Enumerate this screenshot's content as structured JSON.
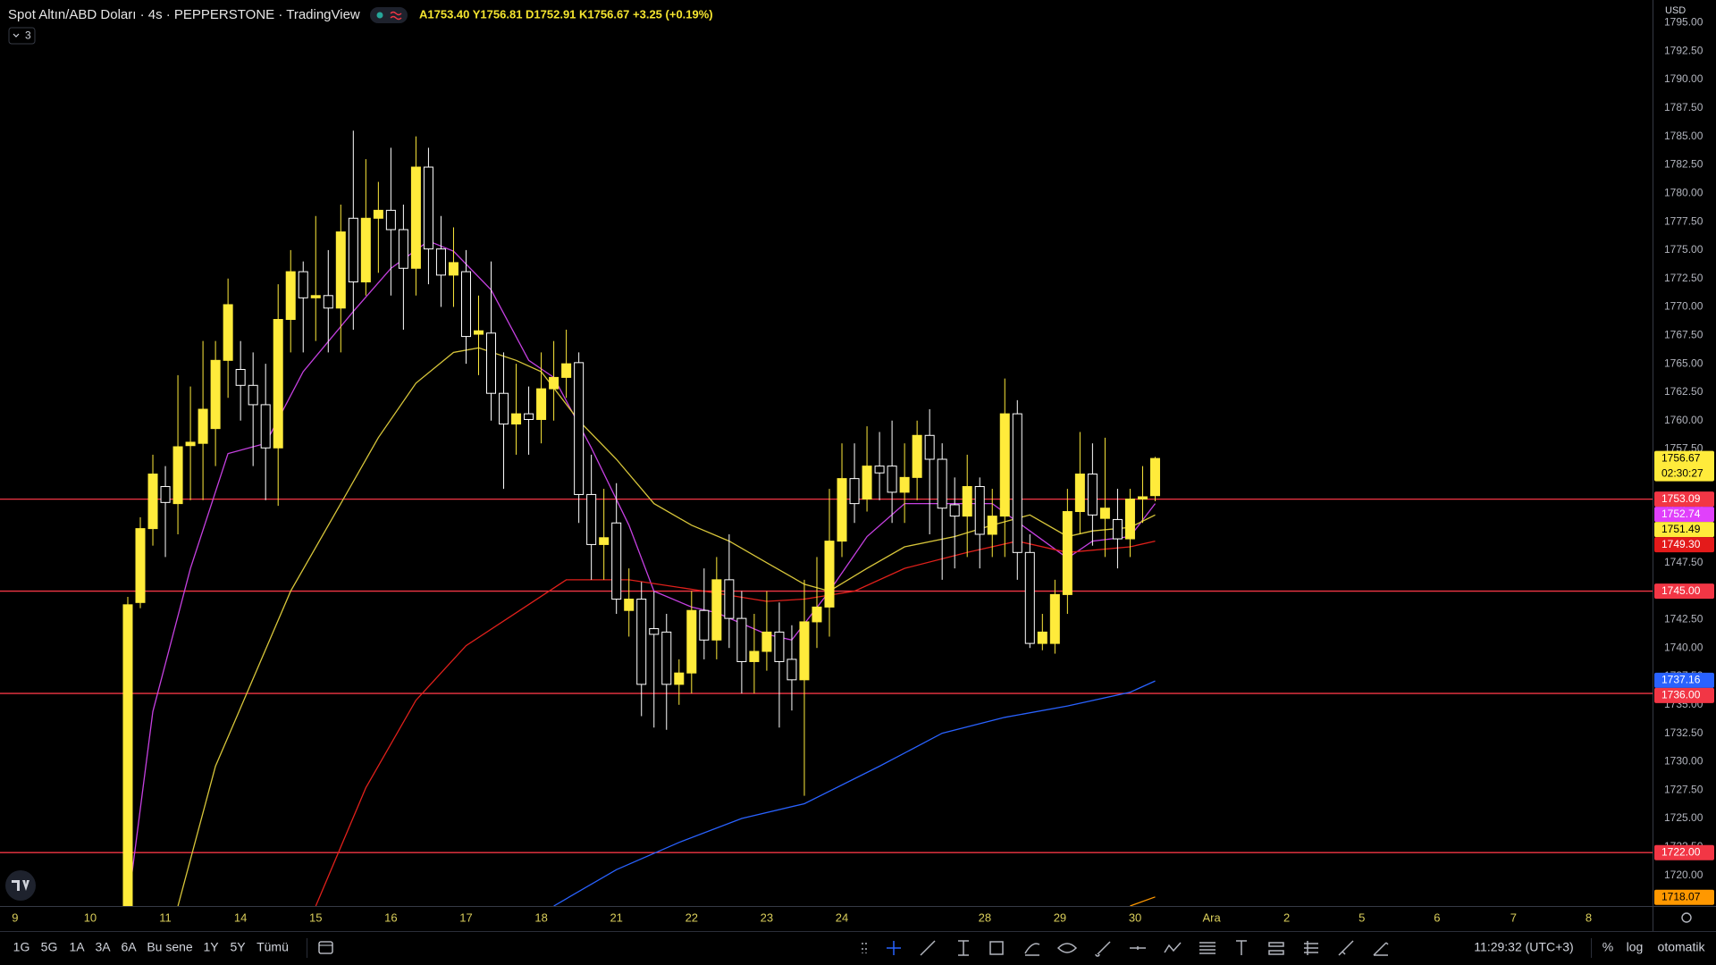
{
  "ui": {
    "symbol": "Spot Altın/ABD Doları · 4s · PEPPERSTONE · TradingView",
    "ohlc": "A1753.40 Y1756.81 D1752.91 K1756.67 +3.25 (+0.19%)",
    "indicators_count": "3",
    "currency": "USD",
    "ranges": [
      "1G",
      "5G",
      "1A",
      "3A",
      "6A",
      "Bu sene",
      "1Y",
      "5Y",
      "Tümü"
    ],
    "clock": "11:29:32 (UTC+3)",
    "percent": "%",
    "log": "log",
    "auto": "otomatik"
  },
  "chart_data": {
    "type": "candlestick",
    "up_color": "#ffeb3b",
    "down_color": "#ffffff",
    "open": [
      1717,
      1744,
      1750.5,
      1754.2,
      1752.7,
      1757.8,
      1758,
      1759.3,
      1765.3,
      1764.5,
      1763.1,
      1761.4,
      1757.6,
      1768.9,
      1773.1,
      1770.8,
      1771,
      1769.9,
      1777.8,
      1772.2,
      1777.8,
      1778.5,
      1776.8,
      1773.4,
      1782.3,
      1775.1,
      1772.8,
      1773.1,
      1767.6,
      1767.7,
      1762.4,
      1759.7,
      1760.6,
      1760.1,
      1762.8,
      1763.8,
      1765.1,
      1753.5,
      1749.1,
      1751,
      1743.3,
      1744.3,
      1741.7,
      1741.4,
      1736.8,
      1737.8,
      1743.3,
      1740.7,
      1746,
      1742.6,
      1738.8,
      1739.7,
      1741.4,
      1739,
      1737.2,
      1742.3,
      1743.6,
      1749.4,
      1754.9,
      1753.1,
      1756,
      1756,
      1753.7,
      1755,
      1758.7,
      1756.6,
      1752.6,
      1751.6,
      1754.2,
      1750,
      1751.6,
      1760.6,
      1748.4,
      1740.4,
      1740.4,
      1744.7,
      1752,
      1755.3,
      1751.4,
      1751.3,
      1749.6,
      1753.1,
      1753.4
    ],
    "high": [
      1744.5,
      1751.5,
      1757,
      1756,
      1764,
      1763,
      1767,
      1767,
      1772.5,
      1767,
      1766,
      1765,
      1772,
      1775,
      1774,
      1778,
      1775,
      1779,
      1785.5,
      1783,
      1781,
      1784,
      1779,
      1785,
      1784,
      1778,
      1777,
      1775,
      1771,
      1774,
      1766,
      1765,
      1763,
      1766,
      1767,
      1768,
      1766,
      1757,
      1754,
      1754.5,
      1747,
      1745.8,
      1745,
      1743,
      1739,
      1745,
      1747,
      1748,
      1750,
      1745,
      1743,
      1745,
      1744,
      1742,
      1746,
      1748,
      1754,
      1758,
      1758,
      1759.5,
      1759,
      1760,
      1758,
      1760,
      1761,
      1758,
      1755,
      1757,
      1755,
      1754,
      1763.7,
      1761.8,
      1750,
      1743,
      1746,
      1754,
      1759,
      1758,
      1758.5,
      1754,
      1754,
      1756,
      1756.81
    ],
    "low": [
      1716,
      1743.5,
      1749,
      1748,
      1750,
      1753,
      1753,
      1756,
      1762,
      1760,
      1756,
      1753,
      1752.5,
      1766,
      1766,
      1767,
      1766,
      1766,
      1768,
      1771,
      1773,
      1771,
      1768,
      1771,
      1772,
      1770,
      1770,
      1765,
      1764,
      1760,
      1754,
      1757,
      1757,
      1758,
      1760,
      1762,
      1751,
      1746,
      1746,
      1743,
      1741,
      1734,
      1733,
      1732.8,
      1735,
      1736,
      1739,
      1739,
      1740,
      1736,
      1736,
      1738,
      1733,
      1734.5,
      1727,
      1740,
      1741,
      1748,
      1751,
      1752,
      1753,
      1751,
      1751,
      1753,
      1750,
      1746,
      1747,
      1748,
      1747,
      1748,
      1748,
      1746,
      1740,
      1739.8,
      1739.5,
      1743,
      1750,
      1749,
      1748,
      1747,
      1748,
      1751,
      1752.91
    ],
    "close": [
      1743.8,
      1750.5,
      1755.3,
      1752.8,
      1757.7,
      1758.1,
      1761,
      1765.3,
      1770.2,
      1763.1,
      1761.4,
      1757.6,
      1768.9,
      1773.1,
      1770.8,
      1771,
      1769.9,
      1776.6,
      1772.2,
      1777.8,
      1778.5,
      1776.8,
      1773.4,
      1782.3,
      1775.1,
      1772.8,
      1773.9,
      1767.4,
      1767.9,
      1762.4,
      1759.7,
      1760.6,
      1760.1,
      1762.8,
      1763.8,
      1765,
      1753.5,
      1749.1,
      1749.7,
      1744.3,
      1744.3,
      1736.8,
      1741.2,
      1736.8,
      1737.8,
      1743.3,
      1740.7,
      1746,
      1742.6,
      1738.8,
      1739.7,
      1741.4,
      1738.8,
      1737.2,
      1742.3,
      1743.6,
      1749.4,
      1754.9,
      1752.7,
      1756,
      1755.4,
      1753.7,
      1755,
      1758.7,
      1756.6,
      1752.3,
      1751.6,
      1754.2,
      1750,
      1751.6,
      1760.6,
      1748.4,
      1740.4,
      1741.4,
      1744.7,
      1752,
      1755.3,
      1751.7,
      1752.3,
      1749.6,
      1753.1,
      1753.3,
      1756.67
    ],
    "xlim": [
      -10.2,
      121.7
    ],
    "xticks": [
      {
        "value": -9,
        "label": "9"
      },
      {
        "value": -3,
        "label": "10"
      },
      {
        "value": 3,
        "label": "11"
      },
      {
        "value": 9,
        "label": "14"
      },
      {
        "value": 15,
        "label": "15"
      },
      {
        "value": 21,
        "label": "16"
      },
      {
        "value": 27,
        "label": "17"
      },
      {
        "value": 33,
        "label": "18"
      },
      {
        "value": 39,
        "label": "21"
      },
      {
        "value": 45,
        "label": "22"
      },
      {
        "value": 51,
        "label": "23"
      },
      {
        "value": 57,
        "label": "24"
      },
      {
        "value": 68.4,
        "label": "28"
      },
      {
        "value": 74.4,
        "label": "29"
      },
      {
        "value": 80.4,
        "label": "30"
      },
      {
        "value": 86.5,
        "label": "Ara"
      },
      {
        "value": 92.5,
        "label": "2"
      },
      {
        "value": 98.5,
        "label": "5"
      },
      {
        "value": 104.5,
        "label": "6"
      },
      {
        "value": 110.6,
        "label": "7"
      },
      {
        "value": 116.6,
        "label": "8"
      }
    ],
    "ylim": [
      1717.3,
      1797.0
    ],
    "yticks": [
      {
        "value": 1720,
        "label": "1720.00"
      },
      {
        "value": 1722.5,
        "label": "1722.50"
      },
      {
        "value": 1725,
        "label": "1725.00"
      },
      {
        "value": 1727.5,
        "label": "1727.50"
      },
      {
        "value": 1730,
        "label": "1730.00"
      },
      {
        "value": 1732.5,
        "label": "1732.50"
      },
      {
        "value": 1735,
        "label": "1735.00"
      },
      {
        "value": 1737.5,
        "label": "1737.50"
      },
      {
        "value": 1740,
        "label": "1740.00"
      },
      {
        "value": 1742.5,
        "label": "1742.50"
      },
      {
        "value": 1745,
        "label": "1745.00"
      },
      {
        "value": 1747.5,
        "label": "1747.50"
      },
      {
        "value": 1750,
        "label": "1750.00"
      },
      {
        "value": 1752.5,
        "label": "1752.50"
      },
      {
        "value": 1755,
        "label": "1755.00"
      },
      {
        "value": 1757.5,
        "label": "1757.50"
      },
      {
        "value": 1760,
        "label": "1760.00"
      },
      {
        "value": 1762.5,
        "label": "1762.50"
      },
      {
        "value": 1765,
        "label": "1765.00"
      },
      {
        "value": 1767.5,
        "label": "1767.50"
      },
      {
        "value": 1770,
        "label": "1770.00"
      },
      {
        "value": 1772.5,
        "label": "1772.50"
      },
      {
        "value": 1775,
        "label": "1775.00"
      },
      {
        "value": 1777.5,
        "label": "1777.50"
      },
      {
        "value": 1780,
        "label": "1780.00"
      },
      {
        "value": 1782.5,
        "label": "1782.50"
      },
      {
        "value": 1785,
        "label": "1785.00"
      },
      {
        "value": 1787.5,
        "label": "1787.50"
      },
      {
        "value": 1790,
        "label": "1790.00"
      },
      {
        "value": 1792.5,
        "label": "1792.50"
      },
      {
        "value": 1795,
        "label": "1795.00"
      }
    ],
    "grid": false,
    "lines": [
      {
        "color": "#c540e0",
        "x": [
          0,
          2,
          5,
          8,
          11,
          14,
          18,
          21,
          24,
          26,
          29,
          32,
          34,
          37,
          40,
          42,
          45,
          47,
          51,
          53,
          56,
          59,
          62,
          66,
          69,
          72,
          75,
          77,
          80,
          82
        ],
        "values": [
          1717.3,
          1734.4,
          1747.0,
          1757.1,
          1758.0,
          1764.3,
          1769.6,
          1773.4,
          1775.8,
          1774.9,
          1771.5,
          1765.3,
          1763.8,
          1757.6,
          1750.8,
          1745.0,
          1743.6,
          1743.1,
          1741.2,
          1740.7,
          1745.0,
          1749.8,
          1752.7,
          1752.7,
          1752.7,
          1750.3,
          1747.9,
          1749.4,
          1749.8,
          1752.7
        ]
      },
      {
        "color": "#d8c63a",
        "x": [
          4,
          7,
          10,
          13,
          17,
          20,
          23,
          26,
          28,
          31,
          33,
          36,
          39,
          42,
          45,
          48,
          51,
          54,
          56,
          59,
          62,
          66,
          69,
          72,
          75,
          77,
          80,
          82
        ],
        "values": [
          1717.3,
          1729.6,
          1737.3,
          1745.0,
          1752.7,
          1758.5,
          1763.3,
          1766.0,
          1766.4,
          1765.3,
          1764.3,
          1760.0,
          1756.6,
          1752.7,
          1750.8,
          1749.4,
          1747.5,
          1745.6,
          1745.0,
          1747.0,
          1748.9,
          1749.8,
          1750.8,
          1751.7,
          1749.8,
          1750.3,
          1750.6,
          1751.7
        ]
      },
      {
        "color": "#e0201b",
        "x": [
          15,
          19,
          23,
          27,
          31,
          35,
          40,
          46,
          51,
          54,
          58,
          62,
          67,
          71,
          75,
          80,
          82
        ],
        "values": [
          1717.3,
          1727.7,
          1735.4,
          1740.2,
          1743.1,
          1746.0,
          1746.0,
          1745.0,
          1744.1,
          1744.3,
          1745.0,
          1747.0,
          1748.4,
          1749.4,
          1748.4,
          1748.9,
          1749.4
        ]
      },
      {
        "color": "#2962ff",
        "x": [
          34,
          39,
          44,
          49,
          54,
          60,
          65,
          70,
          75,
          80,
          82
        ],
        "values": [
          1717.3,
          1720.5,
          1722.9,
          1725.0,
          1726.3,
          1729.6,
          1732.5,
          1733.9,
          1734.9,
          1736.1,
          1737.1
        ]
      },
      {
        "color": "#ff9800",
        "x": [
          80,
          82
        ],
        "values": [
          1717.3,
          1718.1
        ]
      }
    ],
    "hlines": {
      "color": "#f23645",
      "values": [
        1753.09,
        1745,
        1736,
        1722
      ]
    },
    "price_labels": [
      {
        "value": 1756.67,
        "color": "#ffeb3b"
      },
      {
        "value": 1753.09,
        "color": "#f23645"
      },
      {
        "value": 1752.74,
        "color": "#e040fb"
      },
      {
        "value": 1751.49,
        "color": "#ffeb3b"
      },
      {
        "value": 1749.3,
        "label": "1749.30",
        "color": "#e41a1a"
      },
      {
        "value": 1745,
        "label": "1745.00",
        "color": "#f23645"
      },
      {
        "value": 1737.16,
        "color": "#2962ff"
      },
      {
        "value": 1736,
        "label": "1736.00",
        "color": "#f23645"
      },
      {
        "value": 1722,
        "label": "1722.00",
        "color": "#f23645"
      },
      {
        "value": 1718.07,
        "color": "#ff9800"
      }
    ],
    "countdown": "02:30:27"
  }
}
